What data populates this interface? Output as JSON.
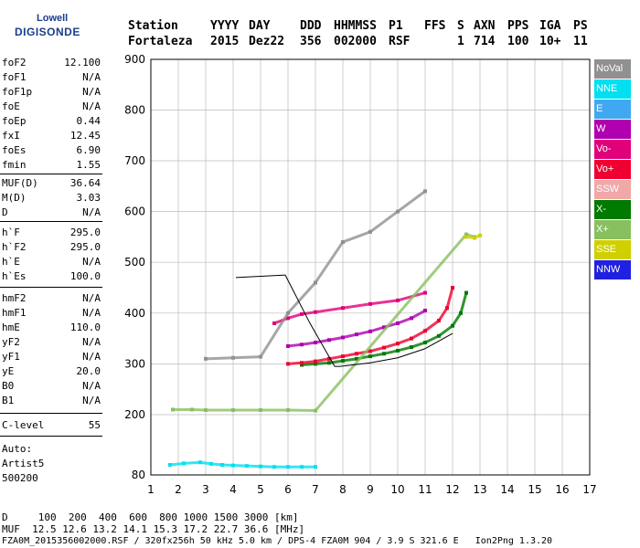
{
  "logo": {
    "line1": "Lowell",
    "line2": "DIGISONDE"
  },
  "header": {
    "row1": [
      "Station",
      "YYYY",
      "DAY",
      "DDD",
      "HHMMSS",
      "P1",
      "FFS",
      "S",
      "AXN",
      "PPS",
      "IGA",
      "PS"
    ],
    "row2": [
      "Fortaleza",
      "2015",
      "Dez22",
      "356",
      "002000",
      "RSF",
      "1",
      "714",
      "100",
      "10+",
      "11"
    ]
  },
  "params": [
    {
      "name": "foF2",
      "value": "12.100"
    },
    {
      "name": "foF1",
      "value": "N/A"
    },
    {
      "name": "foF1p",
      "value": "N/A"
    },
    {
      "name": "foE",
      "value": "N/A"
    },
    {
      "name": "foEp",
      "value": "0.44"
    },
    {
      "name": "fxI",
      "value": "12.45"
    },
    {
      "name": "foEs",
      "value": "6.90"
    },
    {
      "name": "fmin",
      "value": "1.55"
    },
    {
      "name": "MUF(D)",
      "value": "36.64"
    },
    {
      "name": "M(D)",
      "value": "3.03"
    },
    {
      "name": "D",
      "value": "N/A"
    },
    {
      "name": "h`F",
      "value": "295.0"
    },
    {
      "name": "h`F2",
      "value": "295.0"
    },
    {
      "name": "h`E",
      "value": "N/A"
    },
    {
      "name": "h`Es",
      "value": "100.0"
    },
    {
      "name": "hmF2",
      "value": "N/A"
    },
    {
      "name": "hmF1",
      "value": "N/A"
    },
    {
      "name": "hmE",
      "value": "110.0"
    },
    {
      "name": "yF2",
      "value": "N/A"
    },
    {
      "name": "yF1",
      "value": "N/A"
    },
    {
      "name": "yE",
      "value": "20.0"
    },
    {
      "name": "B0",
      "value": "N/A"
    },
    {
      "name": "B1",
      "value": "N/A"
    },
    {
      "name": "C-level",
      "value": "55"
    }
  ],
  "autoscale": {
    "line1": "Auto:",
    "line2": "Artist5",
    "line3": "500200"
  },
  "legend": [
    {
      "label": "NoVal",
      "color": "#909090"
    },
    {
      "label": "NNE",
      "color": "#00e0f0"
    },
    {
      "label": "E",
      "color": "#40a8f0"
    },
    {
      "label": "W",
      "color": "#b000b0"
    },
    {
      "label": "Vo-",
      "color": "#e0007a"
    },
    {
      "label": "Vo+",
      "color": "#f00030"
    },
    {
      "label": "SSW",
      "color": "#f0a8a8"
    },
    {
      "label": "X-",
      "color": "#007a00"
    },
    {
      "label": "X+",
      "color": "#88c060"
    },
    {
      "label": "SSE",
      "color": "#d0d000"
    },
    {
      "label": "NNW",
      "color": "#2020e0"
    }
  ],
  "footer": {
    "d_row": "D     100  200  400  600  800 1000 1500 3000 [km]",
    "muf_row": "MUF  12.5 12.6 13.2 14.1 15.3 17.2 22.7 36.6 [MHz]",
    "file_row": "FZA0M_2015356002000.RSF / 320fx256h 50 kHz 5.0 km / DPS-4 FZA0M 904 / 3.9 S 321.6 E   Ion2Png 1.3.20"
  },
  "chart_data": {
    "type": "scatter",
    "title": "",
    "xlabel": "",
    "ylabel": "",
    "x_ticks": [
      1,
      2,
      3,
      4,
      5,
      6,
      7,
      8,
      9,
      10,
      11,
      12,
      13,
      14,
      15,
      16,
      17
    ],
    "y_ticks": [
      80,
      200,
      300,
      400,
      500,
      600,
      700,
      800,
      900
    ],
    "xlim": [
      1,
      17
    ],
    "ylim": [
      80,
      900
    ],
    "grid": true,
    "legend_position": "right",
    "series": [
      {
        "name": "X-",
        "points": [
          [
            6.5,
            298
          ],
          [
            7,
            300
          ],
          [
            7.5,
            302
          ],
          [
            8,
            306
          ],
          [
            8.5,
            310
          ],
          [
            9,
            315
          ],
          [
            9.5,
            320
          ],
          [
            10,
            326
          ],
          [
            10.5,
            333
          ],
          [
            11,
            342
          ],
          [
            11.5,
            355
          ],
          [
            12,
            375
          ],
          [
            12.3,
            400
          ],
          [
            12.5,
            440
          ]
        ]
      },
      {
        "name": "Vo+",
        "points": [
          [
            6,
            300
          ],
          [
            6.5,
            302
          ],
          [
            7,
            305
          ],
          [
            7.5,
            310
          ],
          [
            8,
            315
          ],
          [
            8.5,
            320
          ],
          [
            9,
            325
          ],
          [
            9.5,
            332
          ],
          [
            10,
            340
          ],
          [
            10.5,
            350
          ],
          [
            11,
            365
          ],
          [
            11.5,
            385
          ],
          [
            11.8,
            410
          ],
          [
            12,
            450
          ]
        ]
      },
      {
        "name": "W",
        "points": [
          [
            6,
            335
          ],
          [
            6.5,
            338
          ],
          [
            7,
            342
          ],
          [
            7.5,
            347
          ],
          [
            8,
            352
          ],
          [
            8.5,
            358
          ],
          [
            9,
            364
          ],
          [
            9.5,
            372
          ],
          [
            10,
            380
          ],
          [
            10.5,
            390
          ],
          [
            11,
            405
          ]
        ]
      },
      {
        "name": "Vo-",
        "points": [
          [
            5.5,
            380
          ],
          [
            6,
            390
          ],
          [
            6.5,
            398
          ],
          [
            7,
            402
          ],
          [
            8,
            410
          ],
          [
            9,
            418
          ],
          [
            10,
            425
          ],
          [
            11,
            440
          ]
        ]
      },
      {
        "name": "NNE",
        "points": [
          [
            1.7,
            100
          ],
          [
            2.2,
            103
          ],
          [
            2.8,
            105
          ],
          [
            3.2,
            102
          ],
          [
            3.6,
            100
          ],
          [
            4,
            99
          ],
          [
            4.5,
            98
          ],
          [
            5,
            97
          ],
          [
            5.5,
            96
          ],
          [
            6,
            96
          ],
          [
            6.5,
            96
          ],
          [
            7,
            96
          ]
        ]
      },
      {
        "name": "X+",
        "points": [
          [
            1.8,
            210
          ],
          [
            2.5,
            210
          ],
          [
            3,
            209
          ],
          [
            4,
            209
          ],
          [
            5,
            209
          ],
          [
            6,
            209
          ],
          [
            7,
            208
          ],
          [
            12.5,
            555
          ],
          [
            12.8,
            550
          ]
        ]
      },
      {
        "name": "SSE",
        "points": [
          [
            12.5,
            550
          ],
          [
            12.8,
            548
          ],
          [
            13,
            553
          ]
        ]
      },
      {
        "name": "NoVal",
        "points": [
          [
            3,
            310
          ],
          [
            4,
            312
          ],
          [
            5,
            314
          ],
          [
            6,
            400
          ],
          [
            7,
            460
          ],
          [
            8,
            540
          ],
          [
            9,
            560
          ],
          [
            10,
            600
          ],
          [
            11,
            640
          ]
        ]
      }
    ],
    "trace": {
      "name": "",
      "points": [
        [
          4.1,
          470
        ],
        [
          5.9,
          475
        ],
        [
          6.8,
          380
        ],
        [
          7.7,
          295
        ],
        [
          7.9,
          295
        ],
        [
          9,
          302
        ],
        [
          10,
          312
        ],
        [
          11,
          330
        ],
        [
          12,
          360
        ]
      ]
    }
  }
}
